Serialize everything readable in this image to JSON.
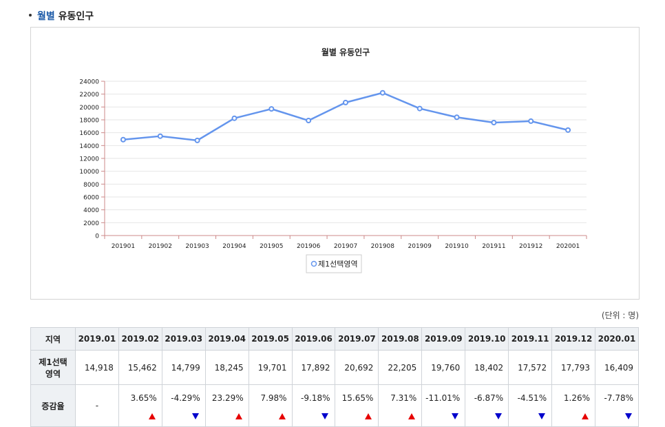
{
  "section": {
    "bullet_hl": "월별",
    "rest": "유동인구"
  },
  "chart_data": {
    "type": "line",
    "title": "월별 유동인구",
    "categories": [
      "201901",
      "201902",
      "201903",
      "201904",
      "201905",
      "201906",
      "201907",
      "201908",
      "201909",
      "201910",
      "201911",
      "201912",
      "202001"
    ],
    "series": [
      {
        "name": "제1선택영역",
        "values": [
          14918,
          15462,
          14799,
          18245,
          19701,
          17892,
          20692,
          22205,
          19760,
          18402,
          17572,
          17793,
          16409
        ]
      }
    ],
    "ylim": [
      0,
      24000
    ],
    "yticks": [
      0,
      2000,
      4000,
      6000,
      8000,
      10000,
      12000,
      14000,
      16000,
      18000,
      20000,
      22000,
      24000
    ],
    "grid": true,
    "legend_position": "bottom-center",
    "line_color": "#6495ed"
  },
  "unit_label": "(단위 : 명)",
  "table": {
    "header_label": "지역",
    "months": [
      "2019.01",
      "2019.02",
      "2019.03",
      "2019.04",
      "2019.05",
      "2019.06",
      "2019.07",
      "2019.08",
      "2019.09",
      "2019.10",
      "2019.11",
      "2019.12",
      "2020.01"
    ],
    "region_row": {
      "label": "제1선택영역",
      "values": [
        "14,918",
        "15,462",
        "14,799",
        "18,245",
        "19,701",
        "17,892",
        "20,692",
        "22,205",
        "19,760",
        "18,402",
        "17,572",
        "17,793",
        "16,409"
      ]
    },
    "rate_row": {
      "label": "증감율",
      "values": [
        "-",
        "3.65%",
        "-4.29%",
        "23.29%",
        "7.98%",
        "-9.18%",
        "15.65%",
        "7.31%",
        "-11.01%",
        "-6.87%",
        "-4.51%",
        "1.26%",
        "-7.78%"
      ],
      "direction": [
        "none",
        "up",
        "down",
        "up",
        "up",
        "down",
        "up",
        "up",
        "down",
        "down",
        "down",
        "up",
        "down"
      ]
    },
    "up_color": "#e60000",
    "down_color": "#0000cc"
  }
}
